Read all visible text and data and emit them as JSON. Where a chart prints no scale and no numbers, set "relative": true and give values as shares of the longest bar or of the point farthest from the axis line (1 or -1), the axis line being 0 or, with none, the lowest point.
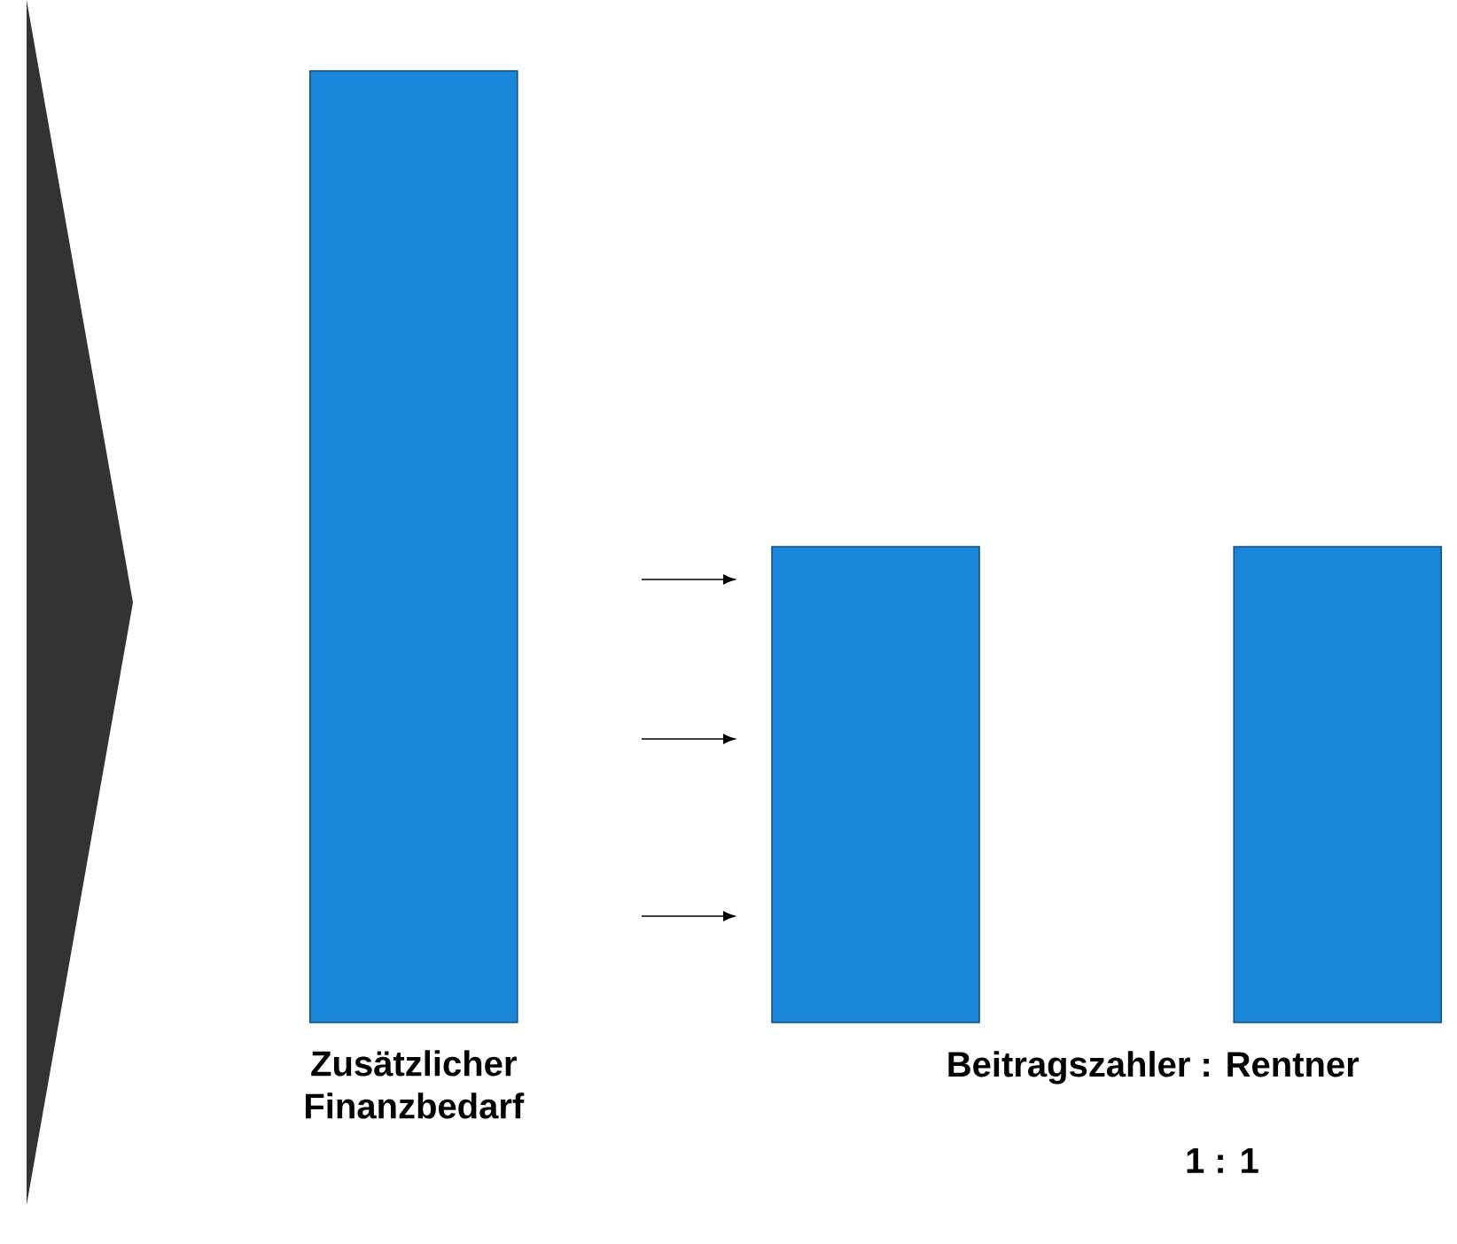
{
  "chart_data": {
    "type": "bar",
    "relative": true,
    "categories": [
      "Zusätzlicher Finanzbedarf",
      null,
      null
    ],
    "values": [
      1,
      0.5,
      0.5
    ],
    "color": "#1a86d9",
    "annotations": [
      "Beitragszahler : Rentner",
      "1 : 1"
    ]
  }
}
